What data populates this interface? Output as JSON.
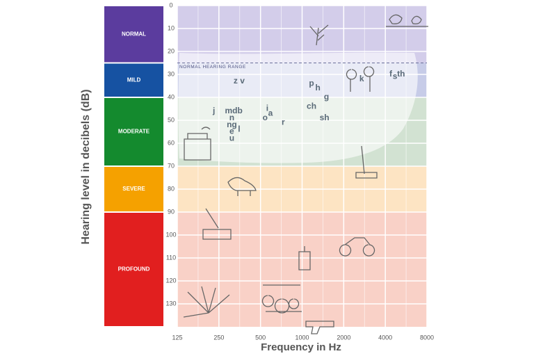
{
  "chart_data": {
    "type": "audiogram",
    "y_label": "Hearing level in decibels (dB)",
    "x_label": "Frequency in Hz",
    "xlim": [
      125,
      8000
    ],
    "xticks": [
      125,
      250,
      500,
      1000,
      2000,
      4000,
      8000
    ],
    "x_log": true,
    "ylim": [
      0,
      140
    ],
    "yticks": [
      0,
      10,
      20,
      30,
      40,
      50,
      60,
      70,
      80,
      90,
      100,
      110,
      120,
      130
    ],
    "y_inverted": true,
    "grid": true,
    "bands": [
      {
        "label": "NORMAL",
        "from": 0,
        "to": 25,
        "color": "#5b3c9e",
        "bg_color": "#d3cdea"
      },
      {
        "label": "MILD",
        "from": 25,
        "to": 40,
        "color": "#1652a2",
        "bg_color": "#c7cce8"
      },
      {
        "label": "MODERATE",
        "from": 40,
        "to": 70,
        "color": "#148a2e",
        "bg_color": "#d2e2d2"
      },
      {
        "label": "SEVERE",
        "from": 70,
        "to": 90,
        "color": "#f5a100",
        "bg_color": "#fde4c3"
      },
      {
        "label": "PROFOUND",
        "from": 90,
        "to": 140,
        "color": "#e11f1f",
        "bg_color": "#f9d1c7"
      }
    ],
    "normal_range": {
      "label": "NORMAL HEARING RANGE",
      "level": 25
    },
    "sounds": [
      {
        "label": "z v",
        "x": 350,
        "y": 33
      },
      {
        "label": "j",
        "x": 230,
        "y": 46
      },
      {
        "label": "mdb",
        "x": 320,
        "y": 46
      },
      {
        "label": "n",
        "x": 310,
        "y": 49
      },
      {
        "label": "ng",
        "x": 310,
        "y": 52
      },
      {
        "label": "e",
        "x": 310,
        "y": 55
      },
      {
        "label": "l",
        "x": 350,
        "y": 54
      },
      {
        "label": "u",
        "x": 310,
        "y": 58
      },
      {
        "label": "i",
        "x": 560,
        "y": 45
      },
      {
        "label": "o",
        "x": 540,
        "y": 49
      },
      {
        "label": "a",
        "x": 590,
        "y": 47
      },
      {
        "label": "r",
        "x": 730,
        "y": 51
      },
      {
        "label": "p",
        "x": 1170,
        "y": 34
      },
      {
        "label": "h",
        "x": 1300,
        "y": 36
      },
      {
        "label": "g",
        "x": 1500,
        "y": 40
      },
      {
        "label": "ch",
        "x": 1170,
        "y": 44
      },
      {
        "label": "sh",
        "x": 1450,
        "y": 49
      },
      {
        "label": "k",
        "x": 2700,
        "y": 32
      },
      {
        "label": "f",
        "x": 4380,
        "y": 30
      },
      {
        "label": "s",
        "x": 4700,
        "y": 31
      },
      {
        "label": "th",
        "x": 5200,
        "y": 30
      }
    ]
  }
}
